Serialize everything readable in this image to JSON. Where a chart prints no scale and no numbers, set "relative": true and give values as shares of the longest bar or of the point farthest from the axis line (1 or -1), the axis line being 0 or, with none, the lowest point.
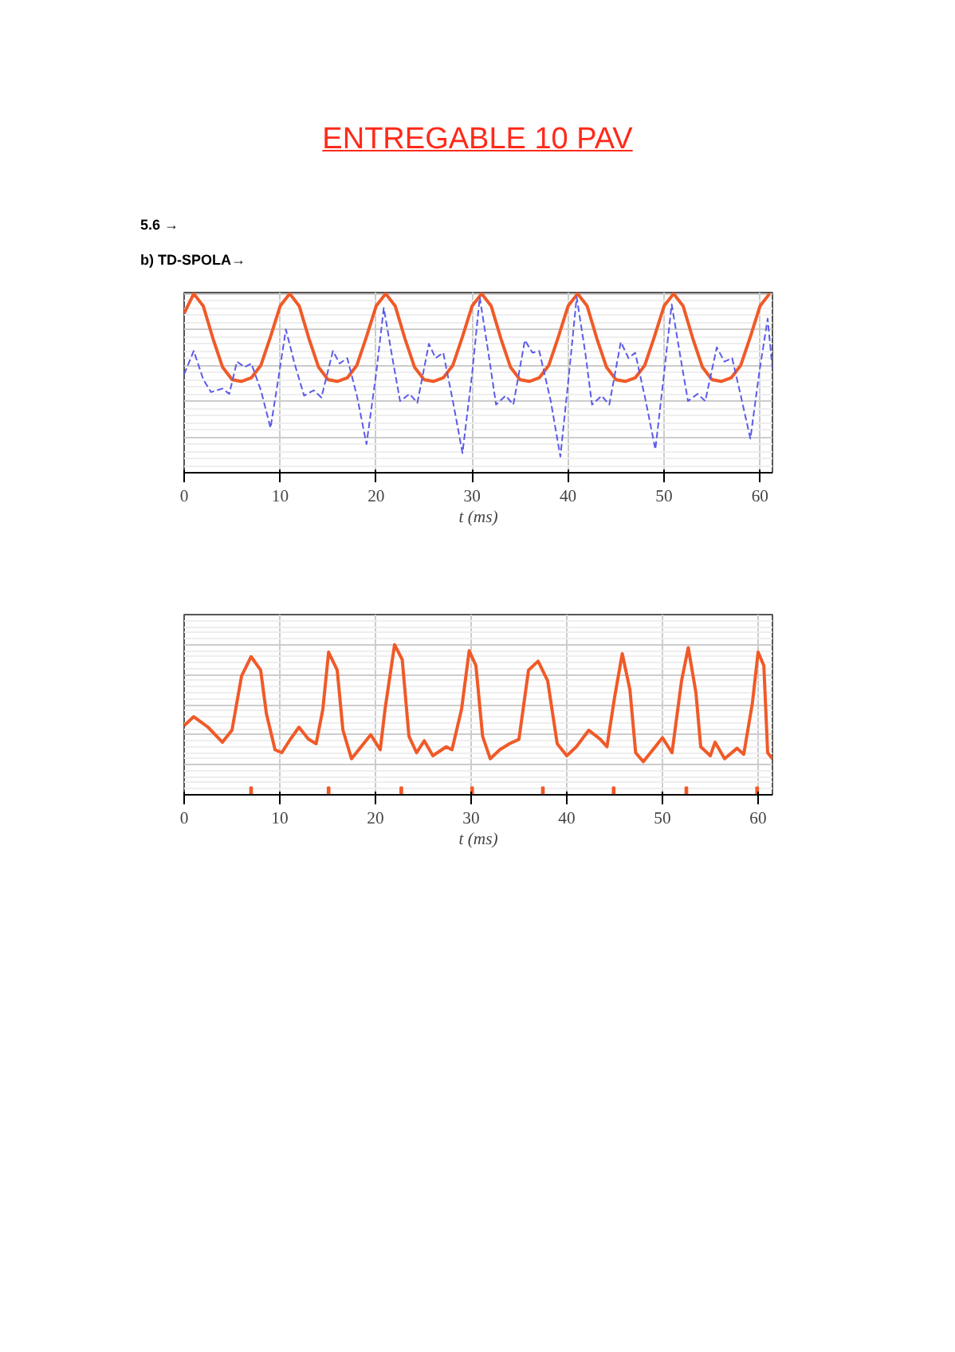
{
  "chart_data": [
    {
      "type": "line",
      "title": "ENTREGABLE 10 PAV",
      "annotations": [
        "5.6 →",
        "b) TD-SPOLA→"
      ],
      "xlabel": "t (ms)",
      "relative": true,
      "xlim": [
        0,
        61.3
      ],
      "xticks": [
        0,
        10,
        20,
        30,
        40,
        50,
        60
      ],
      "grid": true,
      "series": [
        {
          "color": "#f05a28",
          "x": [
            0,
            1,
            2,
            3,
            4,
            5,
            6,
            7,
            8,
            9,
            10,
            11,
            12,
            13,
            14,
            15,
            16,
            17,
            18,
            19,
            20,
            21,
            22,
            23,
            24,
            25,
            26,
            27,
            28,
            29,
            30,
            31,
            32,
            33,
            34,
            35,
            36,
            37,
            38,
            39,
            40,
            41,
            42,
            43,
            44,
            45,
            46,
            47,
            48,
            49,
            50,
            51,
            52,
            53,
            54,
            55,
            56,
            57,
            58,
            59,
            60,
            61
          ],
          "values": [
            0.89,
            1.0,
            0.93,
            0.75,
            0.59,
            0.52,
            0.51,
            0.53,
            0.6,
            0.76,
            0.93,
            1.0,
            0.93,
            0.75,
            0.59,
            0.52,
            0.51,
            0.53,
            0.6,
            0.76,
            0.93,
            1.0,
            0.93,
            0.75,
            0.59,
            0.52,
            0.51,
            0.53,
            0.6,
            0.76,
            0.93,
            1.0,
            0.93,
            0.75,
            0.59,
            0.52,
            0.51,
            0.53,
            0.6,
            0.76,
            0.93,
            1.0,
            0.93,
            0.75,
            0.59,
            0.52,
            0.51,
            0.53,
            0.6,
            0.76,
            0.93,
            1.0,
            0.93,
            0.75,
            0.59,
            0.52,
            0.51,
            0.53,
            0.6,
            0.76,
            0.93,
            1.0
          ]
        },
        {
          "color": "#5b5bea",
          "line_style": "dashed",
          "x": [
            0,
            1,
            2,
            2.8,
            4,
            4.7,
            5.5,
            6.3,
            7,
            8,
            9,
            9.8,
            10.6,
            11.5,
            12.5,
            13.5,
            14.3,
            15.5,
            16.2,
            17,
            18,
            19,
            20,
            20.8,
            21.7,
            22.5,
            23.5,
            24.3,
            25.5,
            26.2,
            27,
            28,
            29,
            30,
            30.8,
            31.7,
            32.5,
            33.5,
            34.3,
            35.5,
            36.3,
            37,
            38.2,
            39.2,
            40.1,
            40.9,
            41.8,
            42.5,
            43.5,
            44.3,
            45.5,
            46.3,
            47,
            48.1,
            49.1,
            50,
            50.8,
            51.7,
            52.5,
            53.5,
            54.3,
            55.5,
            56.3,
            57.1,
            58,
            59,
            59.9,
            60.8,
            61.3
          ],
          "values": [
            0.55,
            0.68,
            0.52,
            0.45,
            0.47,
            0.44,
            0.62,
            0.59,
            0.61,
            0.46,
            0.25,
            0.52,
            0.8,
            0.61,
            0.43,
            0.46,
            0.42,
            0.68,
            0.61,
            0.64,
            0.43,
            0.16,
            0.55,
            0.92,
            0.64,
            0.4,
            0.44,
            0.39,
            0.72,
            0.64,
            0.67,
            0.4,
            0.11,
            0.55,
            0.98,
            0.67,
            0.38,
            0.43,
            0.38,
            0.74,
            0.67,
            0.68,
            0.4,
            0.09,
            0.55,
            0.98,
            0.67,
            0.38,
            0.43,
            0.38,
            0.73,
            0.64,
            0.67,
            0.4,
            0.13,
            0.55,
            0.94,
            0.65,
            0.4,
            0.44,
            0.4,
            0.7,
            0.62,
            0.64,
            0.43,
            0.19,
            0.55,
            0.86,
            0.58
          ]
        }
      ]
    },
    {
      "type": "line",
      "xlabel": "t (ms)",
      "relative": true,
      "xlim": [
        0,
        61.5
      ],
      "xticks": [
        0,
        10,
        20,
        30,
        40,
        50,
        60
      ],
      "grid": true,
      "series": [
        {
          "color": "#f05a28",
          "x": [
            0,
            1,
            2.5,
            4,
            5,
            6,
            7,
            8,
            8.6,
            9.5,
            10.2,
            11,
            12,
            13,
            13.8,
            14.5,
            15.1,
            16,
            16.6,
            17.5,
            18.5,
            19.5,
            20.5,
            21,
            22,
            22.8,
            23.5,
            24.3,
            25.1,
            26,
            27.4,
            28,
            29,
            29.8,
            30.5,
            31.2,
            32,
            33,
            34,
            35,
            36,
            37,
            38,
            39,
            40,
            41,
            42.3,
            43.5,
            44.2,
            45,
            45.8,
            46.6,
            47.2,
            48,
            49,
            50,
            51,
            52,
            52.7,
            53.5,
            54,
            55,
            55.5,
            56.5,
            57.8,
            58.5,
            59.4,
            60,
            60.6,
            61,
            61.5
          ],
          "values": [
            0.46,
            0.52,
            0.45,
            0.35,
            0.43,
            0.79,
            0.92,
            0.83,
            0.54,
            0.3,
            0.28,
            0.36,
            0.45,
            0.37,
            0.34,
            0.57,
            0.95,
            0.83,
            0.43,
            0.24,
            0.32,
            0.4,
            0.3,
            0.57,
            1.0,
            0.9,
            0.39,
            0.28,
            0.36,
            0.26,
            0.32,
            0.3,
            0.57,
            0.96,
            0.86,
            0.39,
            0.24,
            0.3,
            0.34,
            0.37,
            0.83,
            0.89,
            0.76,
            0.34,
            0.26,
            0.32,
            0.43,
            0.37,
            0.32,
            0.65,
            0.94,
            0.7,
            0.28,
            0.22,
            0.3,
            0.38,
            0.28,
            0.76,
            0.98,
            0.68,
            0.32,
            0.26,
            0.35,
            0.24,
            0.31,
            0.27,
            0.61,
            0.95,
            0.86,
            0.28,
            0.24
          ]
        },
        {
          "type": "bar",
          "color": "#f05a28",
          "x": [
            7.0,
            15.1,
            22.7,
            30.1,
            37.5,
            44.9,
            52.5,
            59.9
          ],
          "values": [
            0.05,
            0.05,
            0.05,
            0.05,
            0.05,
            0.05,
            0.05,
            0.05
          ]
        }
      ]
    }
  ]
}
